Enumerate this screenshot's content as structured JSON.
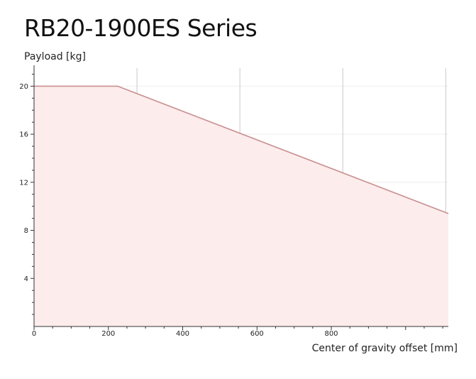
{
  "page": {
    "title": "RB20-1900ES Series"
  },
  "chart_data": {
    "type": "area",
    "title": "RB20-1900ES Series",
    "xlabel": "Center of gravity offset [mm]",
    "ylabel": "Payload [kg]",
    "xlim": [
      0,
      1115
    ],
    "ylim": [
      0,
      21.5
    ],
    "x_ticks": [
      0,
      200,
      400,
      600,
      800
    ],
    "y_ticks": [
      4,
      8,
      12,
      16,
      20
    ],
    "x": [
      0,
      225,
      1115
    ],
    "series": [
      {
        "values": [
          20,
          20,
          9.4
        ]
      }
    ],
    "grid": true,
    "legend": "none",
    "colors": {
      "line": "#c98f8f",
      "fill": "#fdecec",
      "grid_major": "#c9c9c9",
      "grid_minor": "#eeeeee",
      "axis": "#333333"
    }
  }
}
